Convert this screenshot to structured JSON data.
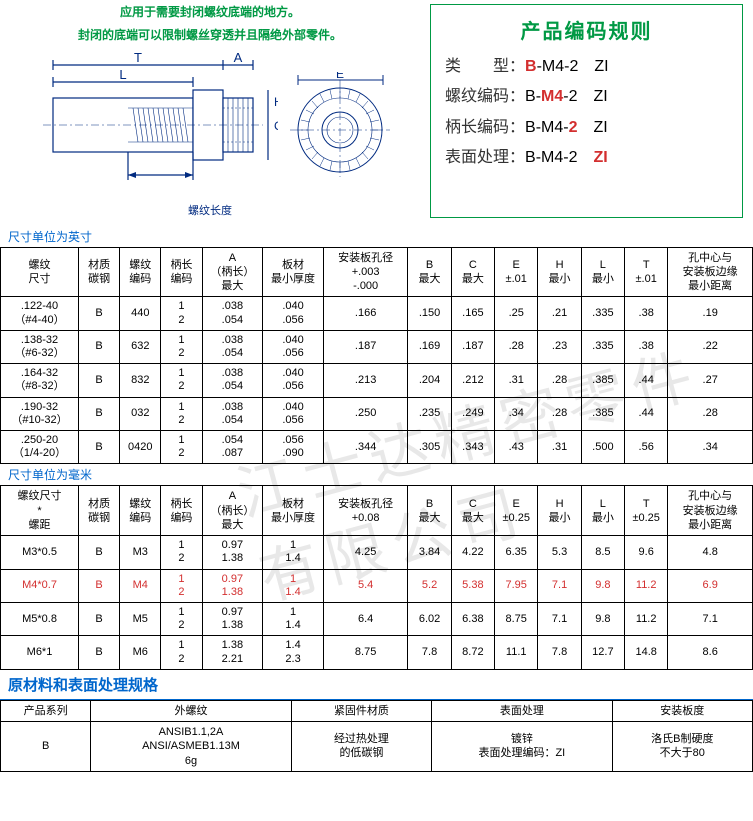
{
  "notes": {
    "line1": "应用于需要封闭螺纹底端的地方。",
    "line2": "封闭的底端可以限制螺丝穿透并且隔绝外部零件。"
  },
  "diagram": {
    "labels": {
      "T": "T",
      "A": "A",
      "L": "L",
      "E": "E",
      "H": "H",
      "C": "C"
    },
    "thread_label": "螺纹长度"
  },
  "coding": {
    "title": "产品编码规则",
    "rows": [
      {
        "label": "类　　型：",
        "parts": [
          {
            "t": "B",
            "c": "red"
          },
          {
            "t": "-M4-2　ZI",
            "c": "black"
          }
        ]
      },
      {
        "label": "螺纹编码：",
        "parts": [
          {
            "t": "B-",
            "c": "black"
          },
          {
            "t": "M4",
            "c": "red"
          },
          {
            "t": "-2　ZI",
            "c": "black"
          }
        ]
      },
      {
        "label": "柄长编码：",
        "parts": [
          {
            "t": "B-M4-",
            "c": "black"
          },
          {
            "t": "2",
            "c": "red"
          },
          {
            "t": "　ZI",
            "c": "black"
          }
        ]
      },
      {
        "label": "表面处理：",
        "parts": [
          {
            "t": "B-M4-2　",
            "c": "black"
          },
          {
            "t": "ZI",
            "c": "red"
          }
        ]
      }
    ]
  },
  "unit_inch": "尺寸单位为英寸",
  "unit_mm": "尺寸单位为毫米",
  "table1": {
    "headers": [
      "螺纹\n尺寸",
      "材质\n碳钢",
      "螺纹\n编码",
      "柄长\n编码",
      "A\n（柄长）\n最大",
      "板材\n最小厚度",
      "安装板孔径\n+.003\n-.000",
      "B\n最大",
      "C\n最大",
      "E\n±.01",
      "H\n最小",
      "L\n最小",
      "T\n±.01",
      "孔中心与\n安装板边缘\n最小距离"
    ],
    "rows": [
      {
        "c": [
          ".122-40\n（#4-40）",
          "B",
          "440",
          "1\n2",
          ".038\n.054",
          ".040\n.056",
          ".166",
          ".150",
          ".165",
          ".25",
          ".21",
          ".335",
          ".38",
          ".19"
        ]
      },
      {
        "c": [
          ".138-32\n（#6-32）",
          "B",
          "632",
          "1\n2",
          ".038\n.054",
          ".040\n.056",
          ".187",
          ".169",
          ".187",
          ".28",
          ".23",
          ".335",
          ".38",
          ".22"
        ]
      },
      {
        "c": [
          ".164-32\n（#8-32）",
          "B",
          "832",
          "1\n2",
          ".038\n.054",
          ".040\n.056",
          ".213",
          ".204",
          ".212",
          ".31",
          ".28",
          ".385",
          ".44",
          ".27"
        ]
      },
      {
        "c": [
          ".190-32\n（#10-32）",
          "B",
          "032",
          "1\n2",
          ".038\n.054",
          ".040\n.056",
          ".250",
          ".235",
          ".249",
          ".34",
          ".28",
          ".385",
          ".44",
          ".28"
        ]
      },
      {
        "c": [
          ".250-20\n（1/4-20）",
          "B",
          "0420",
          "1\n2",
          ".054\n.087",
          ".056\n.090",
          ".344",
          ".305",
          ".343",
          ".43",
          ".31",
          ".500",
          ".56",
          ".34"
        ]
      }
    ]
  },
  "table2": {
    "headers": [
      "螺纹尺寸\n*\n螺距",
      "材质\n碳钢",
      "螺纹\n编码",
      "柄长\n编码",
      "A\n（柄长）\n最大",
      "板材\n最小厚度",
      "安装板孔径\n+0.08",
      "B\n最大",
      "C\n最大",
      "E\n±0.25",
      "H\n最小",
      "L\n最小",
      "T\n±0.25",
      "孔中心与\n安装板边缘\n最小距离"
    ],
    "rows": [
      {
        "c": [
          "M3*0.5",
          "B",
          "M3",
          "1\n2",
          "0.97\n1.38",
          "1\n1.4",
          "4.25",
          "3.84",
          "4.22",
          "6.35",
          "5.3",
          "8.5",
          "9.6",
          "4.8"
        ],
        "red": false
      },
      {
        "c": [
          "M4*0.7",
          "B",
          "M4",
          "1\n2",
          "0.97\n1.38",
          "1\n1.4",
          "5.4",
          "5.2",
          "5.38",
          "7.95",
          "7.1",
          "9.8",
          "11.2",
          "6.9"
        ],
        "red": true
      },
      {
        "c": [
          "M5*0.8",
          "B",
          "M5",
          "1\n2",
          "0.97\n1.38",
          "1\n1.4",
          "6.4",
          "6.02",
          "6.38",
          "8.75",
          "7.1",
          "9.8",
          "11.2",
          "7.1"
        ],
        "red": false
      },
      {
        "c": [
          "M6*1",
          "B",
          "M6",
          "1\n2",
          "1.38\n2.21",
          "1.4\n2.3",
          "8.75",
          "7.8",
          "8.72",
          "11.1",
          "7.8",
          "12.7",
          "14.8",
          "8.6"
        ],
        "red": false
      }
    ]
  },
  "material": {
    "title": "原材料和表面处理规格",
    "headers": [
      "产品系列",
      "外螺纹",
      "紧固件材质",
      "表面处理",
      "安装板度"
    ],
    "row": [
      "B",
      "ANSIB1.1,2A\nANSI/ASMEB1.13M\n6g",
      "经过热处理\n的低碳钢",
      "镀锌\n表面处理编码：ZI",
      "洛氏B制硬度\n不大于80"
    ]
  }
}
